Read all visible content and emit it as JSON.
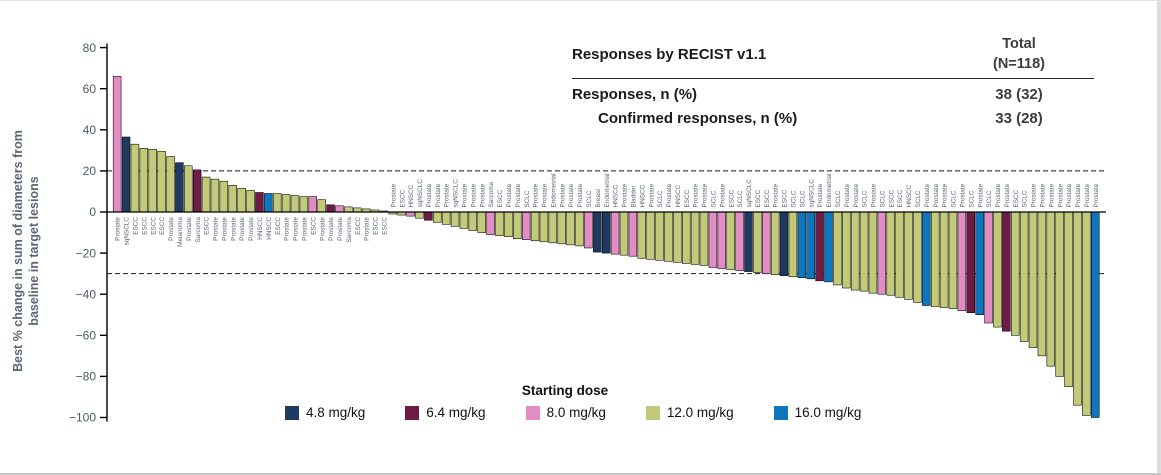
{
  "table": {
    "title": "Responses by RECIST v1.1",
    "total_line1": "Total",
    "total_line2": "(N=118)",
    "rows": [
      {
        "label": "Responses, n (%)",
        "value": "38 (32)",
        "indent": false
      },
      {
        "label": "Confirmed responses, n (%)",
        "value": "33 (28)",
        "indent": true
      }
    ]
  },
  "legend": {
    "title": "Starting dose",
    "items": [
      {
        "label": "4.8 mg/kg",
        "dose": "4.8",
        "color": "#1f3a60"
      },
      {
        "label": "6.4 mg/kg",
        "dose": "6.4",
        "color": "#6e1c46"
      },
      {
        "label": "8.0 mg/kg",
        "dose": "8.0",
        "color": "#e18dc3"
      },
      {
        "label": "12.0 mg/kg",
        "dose": "12.0",
        "color": "#c2c979"
      },
      {
        "label": "16.0 mg/kg",
        "dose": "16.0",
        "color": "#0e76bd"
      }
    ]
  },
  "chart_data": {
    "type": "bar",
    "subtype": "waterfall",
    "ylabel_line1": "Best % change in sum of diameters from",
    "ylabel_line2": "baseline in target lesions",
    "ylim": [
      -100,
      80
    ],
    "yticks": [
      80,
      60,
      40,
      20,
      0,
      -20,
      -40,
      -60,
      -80,
      -100
    ],
    "dashed_ref_lines": [
      20,
      -30
    ],
    "grid": false,
    "legend_title": "Starting dose",
    "axis_color": "#4e5a68",
    "bar_label_color": "#5a6472",
    "doses": {
      "4.8": "#1f3a60",
      "6.4": "#6e1c46",
      "8.0": "#e18dc3",
      "12.0": "#c2c979",
      "16.0": "#0e76bd"
    },
    "bars": [
      {
        "label": "Prostate",
        "dose": "8.0",
        "value": 66
      },
      {
        "label": "sqNSCLC",
        "dose": "4.8",
        "value": 36.5
      },
      {
        "label": "ESCC",
        "dose": "12.0",
        "value": 33
      },
      {
        "label": "ESCC",
        "dose": "12.0",
        "value": 31
      },
      {
        "label": "ESCC",
        "dose": "12.0",
        "value": 30.5
      },
      {
        "label": "ESCC",
        "dose": "12.0",
        "value": 29.5
      },
      {
        "label": "Prostate",
        "dose": "12.0",
        "value": 27
      },
      {
        "label": "Melanoma",
        "dose": "4.8",
        "value": 24
      },
      {
        "label": "Prostate",
        "dose": "12.0",
        "value": 22.5
      },
      {
        "label": "Sarcoma",
        "dose": "6.4",
        "value": 20.5
      },
      {
        "label": "ESCC",
        "dose": "12.0",
        "value": 17
      },
      {
        "label": "Prostate",
        "dose": "12.0",
        "value": 16
      },
      {
        "label": "Prostate",
        "dose": "12.0",
        "value": 15
      },
      {
        "label": "Prostate",
        "dose": "12.0",
        "value": 13
      },
      {
        "label": "Prostate",
        "dose": "12.0",
        "value": 11.5
      },
      {
        "label": "Prostate",
        "dose": "12.0",
        "value": 10.5
      },
      {
        "label": "HNSCC",
        "dose": "6.4",
        "value": 9.5
      },
      {
        "label": "HNSCC",
        "dose": "16.0",
        "value": 9
      },
      {
        "label": "ESCC",
        "dose": "12.0",
        "value": 9
      },
      {
        "label": "Prostate",
        "dose": "12.0",
        "value": 8.5
      },
      {
        "label": "Prostate",
        "dose": "12.0",
        "value": 8
      },
      {
        "label": "Prostate",
        "dose": "12.0",
        "value": 7.5
      },
      {
        "label": "ESCC",
        "dose": "8.0",
        "value": 7.5
      },
      {
        "label": "Prostate",
        "dose": "12.0",
        "value": 6
      },
      {
        "label": "Prostate",
        "dose": "6.4",
        "value": 3.5
      },
      {
        "label": "Prostate",
        "dose": "8.0",
        "value": 3
      },
      {
        "label": "Sarcoma",
        "dose": "12.0",
        "value": 2.5
      },
      {
        "label": "ESCC",
        "dose": "12.0",
        "value": 2
      },
      {
        "label": "Prostate",
        "dose": "12.0",
        "value": 1.5
      },
      {
        "label": "ESCC",
        "dose": "12.0",
        "value": 1
      },
      {
        "label": "ESCC",
        "dose": "12.0",
        "value": 0.5
      },
      {
        "label": "Prostate",
        "dose": "12.0",
        "value": -1
      },
      {
        "label": "ESCC",
        "dose": "12.0",
        "value": -1.5
      },
      {
        "label": "HNSCC",
        "dose": "8.0",
        "value": -2
      },
      {
        "label": "sqNSCLC",
        "dose": "12.0",
        "value": -3
      },
      {
        "label": "Prostate",
        "dose": "6.4",
        "value": -4
      },
      {
        "label": "Prostate",
        "dose": "12.0",
        "value": -5
      },
      {
        "label": "Prostate",
        "dose": "12.0",
        "value": -6
      },
      {
        "label": "sqNSCLC",
        "dose": "12.0",
        "value": -7
      },
      {
        "label": "Prostate",
        "dose": "12.0",
        "value": -8
      },
      {
        "label": "Prostate",
        "dose": "12.0",
        "value": -9
      },
      {
        "label": "Prostate",
        "dose": "12.0",
        "value": -10
      },
      {
        "label": "Sarcoma",
        "dose": "8.0",
        "value": -11
      },
      {
        "label": "ESCC",
        "dose": "12.0",
        "value": -11.5
      },
      {
        "label": "Prostate",
        "dose": "12.0",
        "value": -12
      },
      {
        "label": "Prostate",
        "dose": "12.0",
        "value": -13
      },
      {
        "label": "SCLC",
        "dose": "8.0",
        "value": -13.5
      },
      {
        "label": "Prostate",
        "dose": "12.0",
        "value": -14
      },
      {
        "label": "Prostate",
        "dose": "12.0",
        "value": -14.5
      },
      {
        "label": "Endometrial",
        "dose": "12.0",
        "value": -15
      },
      {
        "label": "Prostate",
        "dose": "12.0",
        "value": -15.5
      },
      {
        "label": "Prostate",
        "dose": "12.0",
        "value": -16
      },
      {
        "label": "Prostate",
        "dose": "12.0",
        "value": -16.5
      },
      {
        "label": "SCLC",
        "dose": "8.0",
        "value": -17.5
      },
      {
        "label": "Breast",
        "dose": "4.8",
        "value": -19.5
      },
      {
        "label": "Endometrial",
        "dose": "4.8",
        "value": -20
      },
      {
        "label": "HNSCC",
        "dose": "8.0",
        "value": -20.5
      },
      {
        "label": "Prostate",
        "dose": "12.0",
        "value": -21
      },
      {
        "label": "Bladder",
        "dose": "8.0",
        "value": -21.5
      },
      {
        "label": "HNSCC",
        "dose": "12.0",
        "value": -22.5
      },
      {
        "label": "Prostate",
        "dose": "12.0",
        "value": -23
      },
      {
        "label": "SCLC",
        "dose": "12.0",
        "value": -23.5
      },
      {
        "label": "Prostate",
        "dose": "12.0",
        "value": -24
      },
      {
        "label": "HNSCC",
        "dose": "12.0",
        "value": -24.5
      },
      {
        "label": "ESCC",
        "dose": "12.0",
        "value": -25
      },
      {
        "label": "Prostate",
        "dose": "12.0",
        "value": -25.5
      },
      {
        "label": "Prostate",
        "dose": "12.0",
        "value": -26
      },
      {
        "label": "SCLC",
        "dose": "8.0",
        "value": -27
      },
      {
        "label": "Prostate",
        "dose": "8.0",
        "value": -27.5
      },
      {
        "label": "ESCC",
        "dose": "12.0",
        "value": -28
      },
      {
        "label": "SCLC",
        "dose": "8.0",
        "value": -28.5
      },
      {
        "label": "sqNSCLC",
        "dose": "4.8",
        "value": -29
      },
      {
        "label": "ESCC",
        "dose": "12.0",
        "value": -29.5
      },
      {
        "label": "ESCC",
        "dose": "8.0",
        "value": -30
      },
      {
        "label": "Prostate",
        "dose": "12.0",
        "value": -30.5
      },
      {
        "label": "ESCC",
        "dose": "4.8",
        "value": -31
      },
      {
        "label": "SCLC",
        "dose": "12.0",
        "value": -31.5
      },
      {
        "label": "SCLC",
        "dose": "16.0",
        "value": -32
      },
      {
        "label": "sqNSCLC",
        "dose": "16.0",
        "value": -32.5
      },
      {
        "label": "Prostate",
        "dose": "6.4",
        "value": -33.5
      },
      {
        "label": "Endometrial",
        "dose": "16.0",
        "value": -34
      },
      {
        "label": "SCLC",
        "dose": "12.0",
        "value": -35.5
      },
      {
        "label": "Prostate",
        "dose": "12.0",
        "value": -37
      },
      {
        "label": "Prostate",
        "dose": "12.0",
        "value": -38
      },
      {
        "label": "SCLC",
        "dose": "12.0",
        "value": -38.5
      },
      {
        "label": "Prostate",
        "dose": "12.0",
        "value": -39.5
      },
      {
        "label": "SCLC",
        "dose": "8.0",
        "value": -40
      },
      {
        "label": "ESCC",
        "dose": "12.0",
        "value": -40.5
      },
      {
        "label": "ESCC",
        "dose": "12.0",
        "value": -41.5
      },
      {
        "label": "HNSCC",
        "dose": "12.0",
        "value": -42.5
      },
      {
        "label": "SCLC",
        "dose": "12.0",
        "value": -44
      },
      {
        "label": "Prostate",
        "dose": "16.0",
        "value": -45.5
      },
      {
        "label": "Prostate",
        "dose": "12.0",
        "value": -46
      },
      {
        "label": "Prostate",
        "dose": "12.0",
        "value": -46.5
      },
      {
        "label": "SCLC",
        "dose": "12.0",
        "value": -47
      },
      {
        "label": "Prostate",
        "dose": "8.0",
        "value": -48
      },
      {
        "label": "SCLC",
        "dose": "6.4",
        "value": -49
      },
      {
        "label": "Prostate",
        "dose": "16.0",
        "value": -50
      },
      {
        "label": "SCLC",
        "dose": "8.0",
        "value": -54
      },
      {
        "label": "Prostate",
        "dose": "12.0",
        "value": -56
      },
      {
        "label": "Prostate",
        "dose": "6.4",
        "value": -58
      },
      {
        "label": "ESCC",
        "dose": "12.0",
        "value": -60
      },
      {
        "label": "SCLC",
        "dose": "12.0",
        "value": -63
      },
      {
        "label": "Prostate",
        "dose": "12.0",
        "value": -66
      },
      {
        "label": "Prostate",
        "dose": "12.0",
        "value": -70
      },
      {
        "label": "Prostate",
        "dose": "12.0",
        "value": -75
      },
      {
        "label": "Prostate",
        "dose": "12.0",
        "value": -80
      },
      {
        "label": "Prostate",
        "dose": "12.0",
        "value": -85
      },
      {
        "label": "Prostate",
        "dose": "12.0",
        "value": -94
      },
      {
        "label": "Prostate",
        "dose": "12.0",
        "value": -99
      },
      {
        "label": "Prostate",
        "dose": "16.0",
        "value": -100
      }
    ]
  }
}
